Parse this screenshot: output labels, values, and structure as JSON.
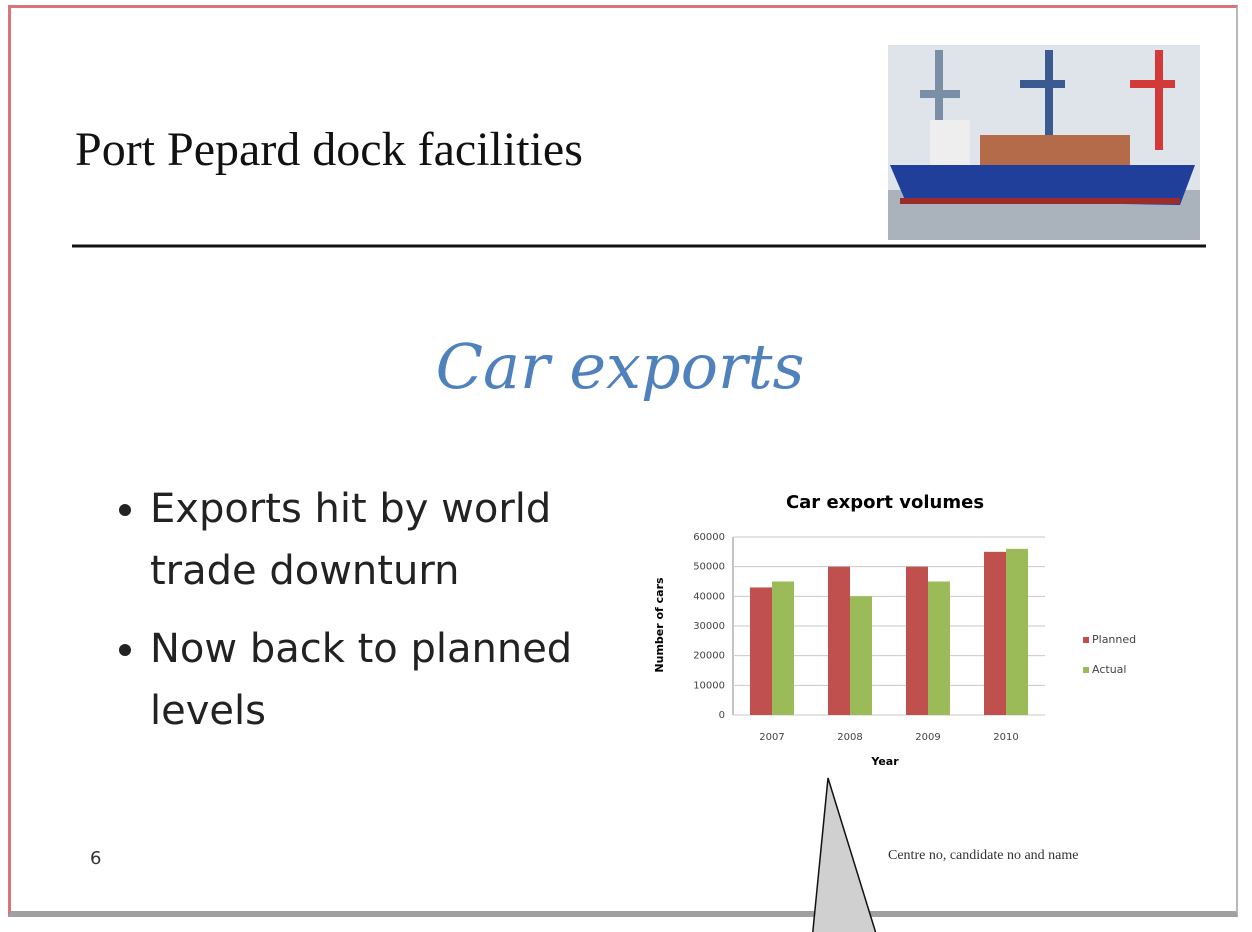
{
  "slide": {
    "title": "Port Pepard dock facilities",
    "subtitle": "Car exports",
    "bullets": [
      "Exports hit by world trade downturn",
      "Now back to planned levels"
    ],
    "page_number": "6",
    "footer": "Centre no, candidate no and name"
  },
  "chart_data": {
    "type": "bar",
    "title": "Car export volumes",
    "x_label": "Year",
    "y_label": "Number of cars",
    "categories": [
      "2007",
      "2008",
      "2009",
      "2010"
    ],
    "series": [
      {
        "name": "Planned",
        "color": "#c0504d",
        "values": [
          43000,
          50000,
          50000,
          55000
        ]
      },
      {
        "name": "Actual",
        "color": "#9bbb59",
        "values": [
          45000,
          40000,
          45000,
          56000
        ]
      }
    ],
    "ylim": [
      0,
      60000
    ],
    "yticks": [
      0,
      10000,
      20000,
      30000,
      40000,
      50000,
      60000
    ],
    "grid": true,
    "legend": "right"
  }
}
